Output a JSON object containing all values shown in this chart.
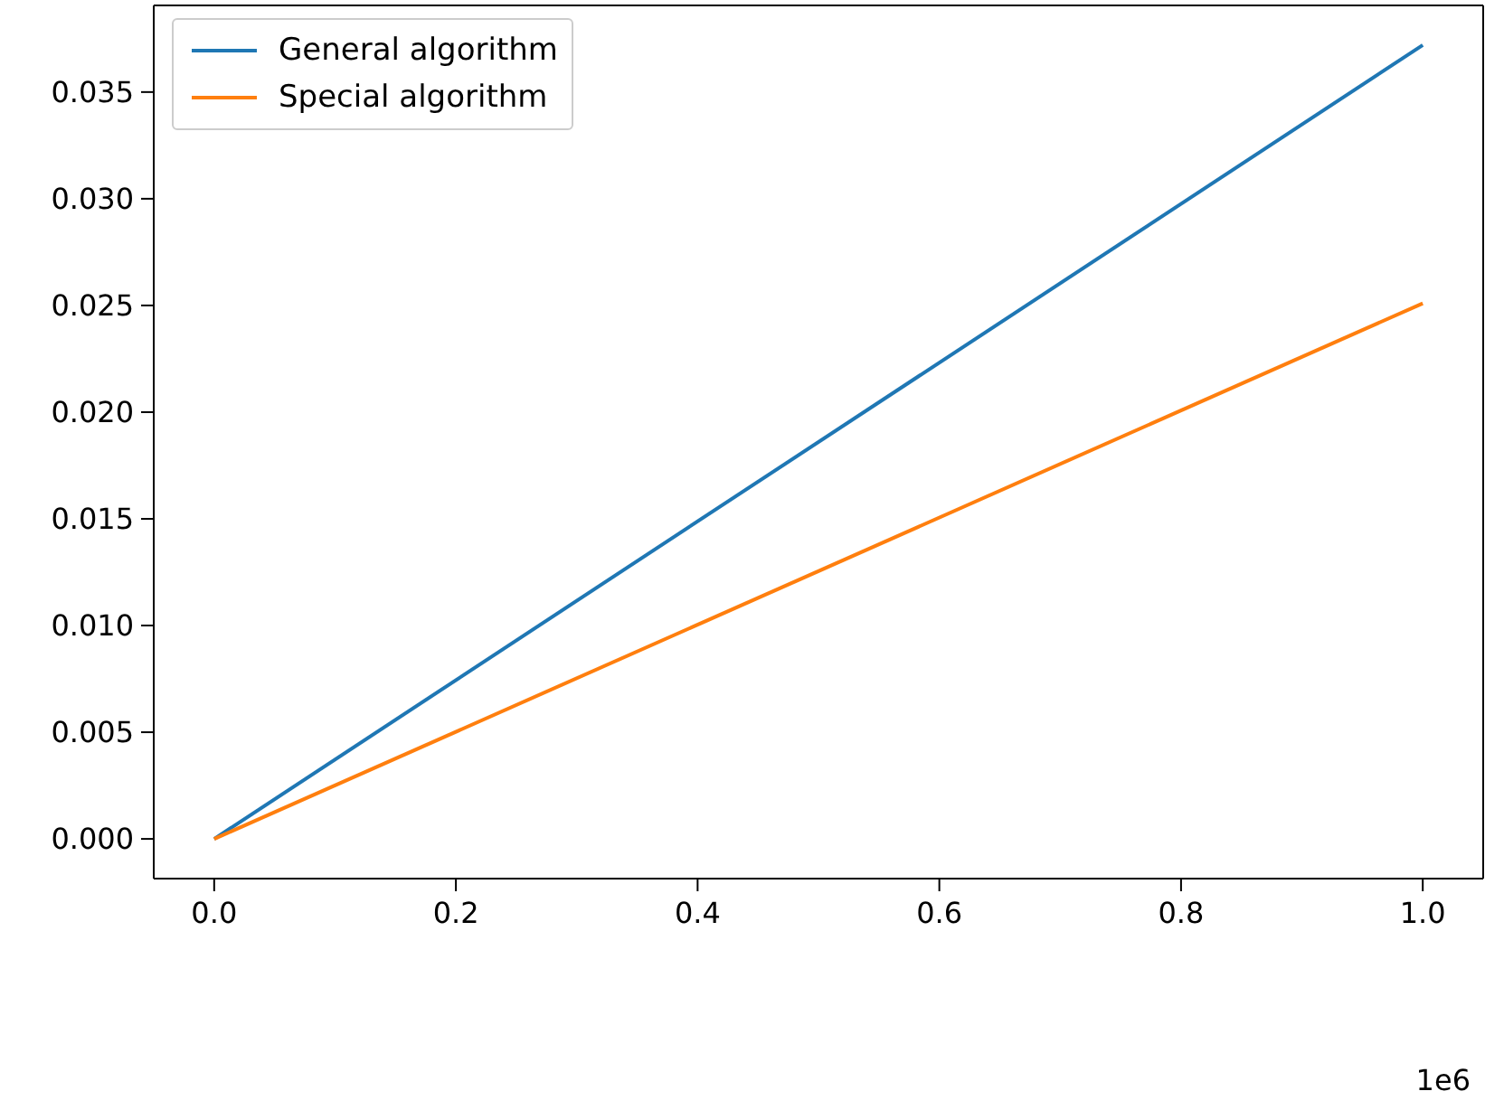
{
  "chart_data": {
    "type": "line",
    "x": [
      0,
      1
    ],
    "series": [
      {
        "name": "General algorithm",
        "color": "#1f77b4",
        "values": [
          0,
          0.0372
        ]
      },
      {
        "name": "Special algorithm",
        "color": "#ff7f0e",
        "values": [
          0,
          0.0251
        ]
      }
    ],
    "xlim": [
      -0.05,
      1.05
    ],
    "xticks": [
      {
        "value": 0,
        "label": "0.0"
      },
      0.2,
      0.4,
      0.6,
      0.8,
      {
        "value": 1,
        "label": "1.0"
      }
    ],
    "ylim": [
      -0.00186,
      0.03906
    ],
    "yticks": [
      {
        "value": 0,
        "label": "0.000"
      },
      0.005,
      {
        "value": 0.01,
        "label": "0.010"
      },
      0.015,
      {
        "value": 0.02,
        "label": "0.020"
      },
      0.025,
      {
        "value": 0.03,
        "label": "0.030"
      },
      0.035
    ],
    "annotations": [
      "1e6"
    ],
    "legend": "top left",
    "marker": "none",
    "line_style": "solid"
  }
}
